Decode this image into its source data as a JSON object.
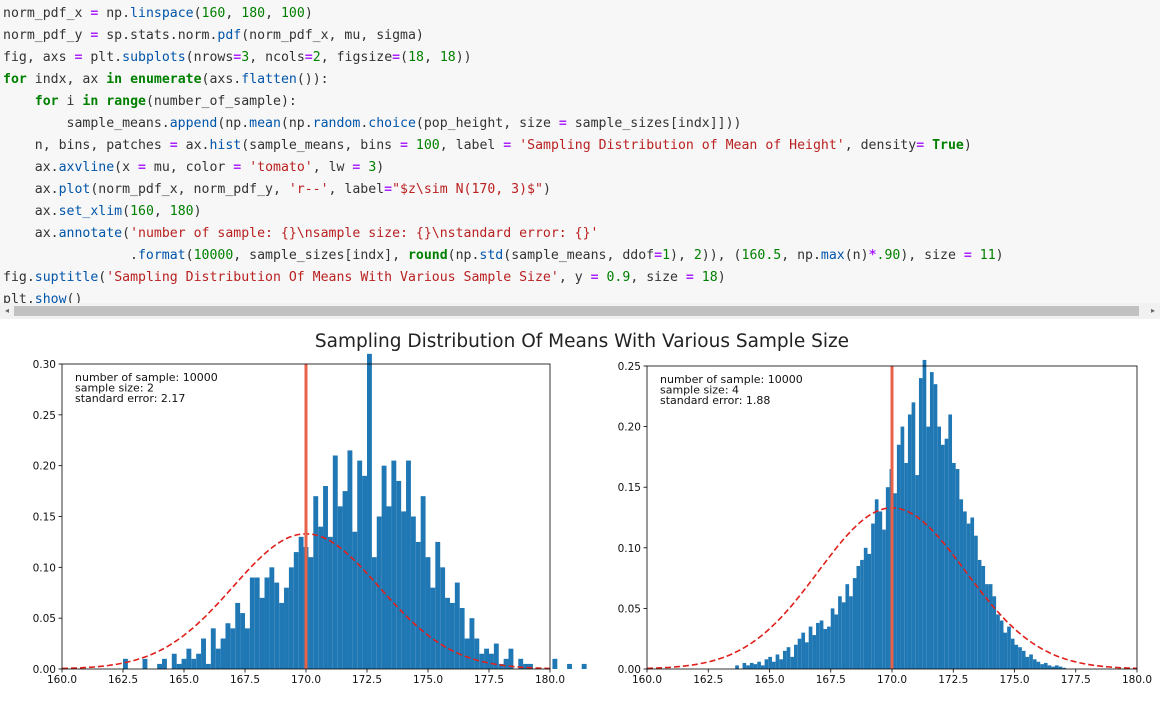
{
  "code": {
    "lines": [
      [
        [
          "t",
          "norm_pdf_x "
        ],
        [
          "op",
          "="
        ],
        [
          "t",
          " np."
        ],
        [
          "fn",
          "linspace"
        ],
        [
          "t",
          "("
        ],
        [
          "num",
          "160"
        ],
        [
          "t",
          ", "
        ],
        [
          "num",
          "180"
        ],
        [
          "t",
          ", "
        ],
        [
          "num",
          "100"
        ],
        [
          "t",
          ")"
        ]
      ],
      [
        [
          "t",
          "norm_pdf_y "
        ],
        [
          "op",
          "="
        ],
        [
          "t",
          " sp.stats.norm."
        ],
        [
          "fn",
          "pdf"
        ],
        [
          "t",
          "(norm_pdf_x, mu, sigma)"
        ]
      ],
      [
        [
          "t",
          "fig, axs "
        ],
        [
          "op",
          "="
        ],
        [
          "t",
          " plt."
        ],
        [
          "fn",
          "subplots"
        ],
        [
          "t",
          "(nrows"
        ],
        [
          "op",
          "="
        ],
        [
          "num",
          "3"
        ],
        [
          "t",
          ", ncols"
        ],
        [
          "op",
          "="
        ],
        [
          "num",
          "2"
        ],
        [
          "t",
          ", figsize"
        ],
        [
          "op",
          "="
        ],
        [
          "t",
          "("
        ],
        [
          "num",
          "18"
        ],
        [
          "t",
          ", "
        ],
        [
          "num",
          "18"
        ],
        [
          "t",
          "))"
        ]
      ],
      [
        [
          "kw",
          "for"
        ],
        [
          "t",
          " indx, ax "
        ],
        [
          "kw",
          "in"
        ],
        [
          "t",
          " "
        ],
        [
          "kw",
          "enumerate"
        ],
        [
          "t",
          "(axs."
        ],
        [
          "fn",
          "flatten"
        ],
        [
          "t",
          "()):"
        ]
      ],
      [
        [
          "t",
          "    "
        ],
        [
          "kw",
          "for"
        ],
        [
          "t",
          " i "
        ],
        [
          "kw",
          "in"
        ],
        [
          "t",
          " "
        ],
        [
          "kw",
          "range"
        ],
        [
          "t",
          "(number_of_sample):"
        ]
      ],
      [
        [
          "t",
          "        sample_means."
        ],
        [
          "fn",
          "append"
        ],
        [
          "t",
          "(np."
        ],
        [
          "fn",
          "mean"
        ],
        [
          "t",
          "(np."
        ],
        [
          "fn",
          "random"
        ],
        [
          "t",
          "."
        ],
        [
          "fn",
          "choice"
        ],
        [
          "t",
          "(pop_height, size "
        ],
        [
          "op",
          "="
        ],
        [
          "t",
          " sample_sizes[indx]]))"
        ]
      ],
      [
        [
          "t",
          "    n, bins, patches "
        ],
        [
          "op",
          "="
        ],
        [
          "t",
          " ax."
        ],
        [
          "fn",
          "hist"
        ],
        [
          "t",
          "(sample_means, bins "
        ],
        [
          "op",
          "="
        ],
        [
          "t",
          " "
        ],
        [
          "num",
          "100"
        ],
        [
          "t",
          ", label "
        ],
        [
          "op",
          "="
        ],
        [
          "t",
          " "
        ],
        [
          "str",
          "'Sampling Distribution of Mean of Height'"
        ],
        [
          "t",
          ", density"
        ],
        [
          "op",
          "="
        ],
        [
          "t",
          " "
        ],
        [
          "kw",
          "True"
        ],
        [
          "t",
          ")"
        ]
      ],
      [
        [
          "t",
          "    ax."
        ],
        [
          "fn",
          "axvline"
        ],
        [
          "t",
          "(x "
        ],
        [
          "op",
          "="
        ],
        [
          "t",
          " mu, color "
        ],
        [
          "op",
          "="
        ],
        [
          "t",
          " "
        ],
        [
          "str",
          "'tomato'"
        ],
        [
          "t",
          ", lw "
        ],
        [
          "op",
          "="
        ],
        [
          "t",
          " "
        ],
        [
          "num",
          "3"
        ],
        [
          "t",
          ")"
        ]
      ],
      [
        [
          "t",
          "    ax."
        ],
        [
          "fn",
          "plot"
        ],
        [
          "t",
          "(norm_pdf_x, norm_pdf_y, "
        ],
        [
          "str",
          "'r--'"
        ],
        [
          "t",
          ", label"
        ],
        [
          "op",
          "="
        ],
        [
          "str",
          "\"$z\\sim N(170, 3)$\""
        ],
        [
          "t",
          ")"
        ]
      ],
      [
        [
          "t",
          "    ax."
        ],
        [
          "fn",
          "set_xlim"
        ],
        [
          "t",
          "("
        ],
        [
          "num",
          "160"
        ],
        [
          "t",
          ", "
        ],
        [
          "num",
          "180"
        ],
        [
          "t",
          ")"
        ]
      ],
      [
        [
          "t",
          "    ax."
        ],
        [
          "fn",
          "annotate"
        ],
        [
          "t",
          "("
        ],
        [
          "str",
          "'number of sample: {}\\nsample size: {}\\nstandard error: {}'"
        ]
      ],
      [
        [
          "t",
          "                ."
        ],
        [
          "fn",
          "format"
        ],
        [
          "t",
          "("
        ],
        [
          "num",
          "10000"
        ],
        [
          "t",
          ", sample_sizes[indx], "
        ],
        [
          "kw",
          "round"
        ],
        [
          "t",
          "(np."
        ],
        [
          "fn",
          "std"
        ],
        [
          "t",
          "(sample_means, ddof"
        ],
        [
          "op",
          "="
        ],
        [
          "num",
          "1"
        ],
        [
          "t",
          "), "
        ],
        [
          "num",
          "2"
        ],
        [
          "t",
          ")), ("
        ],
        [
          "num",
          "160.5"
        ],
        [
          "t",
          ", np."
        ],
        [
          "fn",
          "max"
        ],
        [
          "t",
          "(n)"
        ],
        [
          "op",
          "*"
        ],
        [
          "num",
          ".90"
        ],
        [
          "t",
          "), size "
        ],
        [
          "op",
          "="
        ],
        [
          "t",
          " "
        ],
        [
          "num",
          "11"
        ],
        [
          "t",
          ")"
        ]
      ],
      [
        [
          "t",
          "fig."
        ],
        [
          "fn",
          "suptitle"
        ],
        [
          "t",
          "("
        ],
        [
          "str",
          "'Sampling Distribution Of Means With Various Sample Size'"
        ],
        [
          "t",
          ", y "
        ],
        [
          "op",
          "="
        ],
        [
          "t",
          " "
        ],
        [
          "num",
          "0.9"
        ],
        [
          "t",
          ", size "
        ],
        [
          "op",
          "="
        ],
        [
          "t",
          " "
        ],
        [
          "num",
          "18"
        ],
        [
          "t",
          ")"
        ]
      ],
      [
        [
          "t",
          "plt."
        ],
        [
          "fn",
          "show"
        ],
        [
          "t",
          "()"
        ]
      ]
    ]
  },
  "scrollbar": {
    "left_arrow": "◂",
    "right_arrow": "▸"
  },
  "figure": {
    "suptitle": "Sampling Distribution Of Means With Various Sample Size"
  },
  "colors": {
    "bar": "#1f77b4",
    "vline": "#e8614a",
    "pdf": "#e0201b"
  },
  "chart_data": [
    {
      "type": "bar",
      "xlim": [
        160,
        180
      ],
      "ylim": [
        0,
        0.3
      ],
      "xticks": [
        "160.0",
        "162.5",
        "165.0",
        "167.5",
        "170.0",
        "172.5",
        "175.0",
        "177.5",
        "180.0"
      ],
      "yticks": [
        "0.00",
        "0.05",
        "0.10",
        "0.15",
        "0.20",
        "0.25",
        "0.30"
      ],
      "annotation": [
        "number of sample: 10000",
        "sample size: 2",
        "standard error: 2.17"
      ],
      "vline_x": 170,
      "pdf": {
        "mu": 170,
        "sigma": 3
      },
      "hist": {
        "x_start": 162.5,
        "bin_width": 0.2,
        "values": [
          0.01,
          0,
          0,
          0,
          0.01,
          0,
          0,
          0.005,
          0.01,
          0,
          0.015,
          0.005,
          0.01,
          0.02,
          0.01,
          0.015,
          0.03,
          0.005,
          0.04,
          0.02,
          0.03,
          0.045,
          0.04,
          0.065,
          0.055,
          0.04,
          0.09,
          0.09,
          0.07,
          0.09,
          0.1,
          0.085,
          0.065,
          0.08,
          0.1,
          0.115,
          0.13,
          0.12,
          0.11,
          0.17,
          0.14,
          0.18,
          0.13,
          0.21,
          0.16,
          0.175,
          0.215,
          0.135,
          0.205,
          0.19,
          0.31,
          0.11,
          0.15,
          0.2,
          0.16,
          0.205,
          0.185,
          0.155,
          0.205,
          0.15,
          0.125,
          0.17,
          0.11,
          0.08,
          0.125,
          0.1,
          0.07,
          0.065,
          0.085,
          0.06,
          0.03,
          0.05,
          0.03,
          0.015,
          0.02,
          0.015,
          0.025,
          0.005,
          0.01,
          0.02,
          0,
          0.01,
          0.005,
          0.005,
          0,
          0,
          0,
          0,
          0.01,
          0,
          0,
          0.005,
          0,
          0,
          0.005
        ]
      }
    },
    {
      "type": "bar",
      "xlim": [
        160,
        180
      ],
      "ylim": [
        0,
        0.25
      ],
      "xticks": [
        "160.0",
        "162.5",
        "165.0",
        "167.5",
        "170.0",
        "172.5",
        "175.0",
        "177.5",
        "180.0"
      ],
      "yticks": [
        "0.00",
        "0.05",
        "0.10",
        "0.15",
        "0.20",
        "0.25"
      ],
      "annotation": [
        "number of sample: 10000",
        "sample size: 4",
        "standard error: 1.88"
      ],
      "vline_x": 170,
      "pdf": {
        "mu": 170,
        "sigma": 3
      },
      "hist": {
        "x_start": 163.6,
        "bin_width": 0.15,
        "values": [
          0.003,
          0,
          0.005,
          0.003,
          0.005,
          0.004,
          0.006,
          0.003,
          0.008,
          0.01,
          0.006,
          0.012,
          0.008,
          0.015,
          0.018,
          0.01,
          0.02,
          0.025,
          0.03,
          0.022,
          0.035,
          0.028,
          0.038,
          0.04,
          0.033,
          0.035,
          0.05,
          0.045,
          0.06,
          0.055,
          0.07,
          0.06,
          0.075,
          0.085,
          0.09,
          0.1,
          0.095,
          0.12,
          0.14,
          0.13,
          0.115,
          0.15,
          0.165,
          0.145,
          0.185,
          0.2,
          0.17,
          0.21,
          0.22,
          0.16,
          0.24,
          0.255,
          0.2,
          0.245,
          0.235,
          0.2,
          0.185,
          0.19,
          0.21,
          0.17,
          0.165,
          0.14,
          0.13,
          0.12,
          0.125,
          0.11,
          0.09,
          0.085,
          0.07,
          0.07,
          0.06,
          0.045,
          0.04,
          0.03,
          0.035,
          0.025,
          0.02,
          0.018,
          0.015,
          0.01,
          0.012,
          0.008,
          0.006,
          0.004,
          0.005,
          0.003,
          0.002,
          0.003,
          0.002,
          0.001
        ]
      }
    }
  ]
}
